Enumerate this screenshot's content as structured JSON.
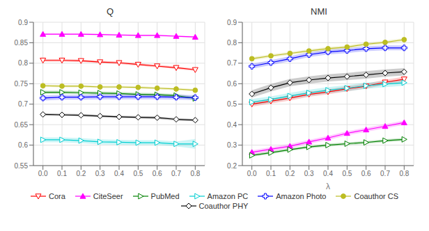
{
  "chart_data": [
    {
      "type": "line",
      "title": "Q",
      "legend": "bottom",
      "grid": true,
      "x": [
        0.0,
        0.1,
        0.2,
        0.3,
        0.4,
        0.5,
        0.6,
        0.7,
        0.8
      ],
      "xlim": [
        -0.05,
        0.85
      ],
      "xticks": [
        {
          "value": 0.0,
          "label": "0.0"
        },
        0.1,
        0.2,
        0.3,
        0.4,
        0.5,
        0.6,
        0.7,
        0.8
      ],
      "ylim": [
        0.55,
        0.9
      ],
      "yticks": [
        0.55,
        0.6,
        0.65,
        0.7,
        0.75,
        0.8,
        0.85,
        0.9
      ],
      "series": [
        {
          "name": "Cora",
          "color": "#ff0000",
          "marker": "triangle_down_open",
          "values": [
            0.807,
            0.807,
            0.806,
            0.803,
            0.801,
            0.797,
            0.793,
            0.789,
            0.784
          ],
          "std": [
            0.003,
            0.003,
            0.003,
            0.003,
            0.003,
            0.003,
            0.003,
            0.003,
            0.003
          ]
        },
        {
          "name": "CiteSeer",
          "color": "#ff00ff",
          "marker": "triangle_up_filled",
          "values": [
            0.871,
            0.871,
            0.871,
            0.87,
            0.869,
            0.868,
            0.868,
            0.866,
            0.864
          ],
          "std": [
            0.002,
            0.002,
            0.002,
            0.002,
            0.002,
            0.002,
            0.002,
            0.002,
            0.002
          ]
        },
        {
          "name": "PubMed",
          "color": "#008000",
          "marker": "triangle_right_open",
          "values": [
            0.729,
            0.729,
            0.728,
            0.727,
            0.726,
            0.724,
            0.723,
            0.721,
            0.714
          ],
          "std": [
            0.004,
            0.004,
            0.004,
            0.004,
            0.004,
            0.004,
            0.004,
            0.004,
            0.004
          ]
        },
        {
          "name": "Amazon PC",
          "color": "#00ced1",
          "marker": "triangle_right_open",
          "values": [
            0.613,
            0.613,
            0.611,
            0.608,
            0.607,
            0.606,
            0.606,
            0.603,
            0.603
          ],
          "std": [
            0.006,
            0.006,
            0.006,
            0.006,
            0.006,
            0.006,
            0.006,
            0.006,
            0.012
          ]
        },
        {
          "name": "Amazon Photo",
          "color": "#0000ff",
          "marker": "plus_open",
          "values": [
            0.715,
            0.717,
            0.717,
            0.718,
            0.718,
            0.718,
            0.718,
            0.717,
            0.716
          ],
          "std": [
            0.006,
            0.006,
            0.006,
            0.006,
            0.006,
            0.006,
            0.006,
            0.006,
            0.006
          ]
        },
        {
          "name": "Coauthor CS",
          "color": "#bcbd22",
          "marker": "circle_filled",
          "values": [
            0.745,
            0.744,
            0.744,
            0.742,
            0.742,
            0.741,
            0.739,
            0.737,
            0.734
          ],
          "std": [
            0.003,
            0.003,
            0.003,
            0.003,
            0.003,
            0.003,
            0.003,
            0.003,
            0.003
          ]
        },
        {
          "name": "Coauthor PHY",
          "color": "#000000",
          "marker": "diamond_open",
          "values": [
            0.675,
            0.674,
            0.673,
            0.671,
            0.669,
            0.668,
            0.667,
            0.663,
            0.661
          ],
          "std": [
            0.003,
            0.003,
            0.003,
            0.003,
            0.003,
            0.003,
            0.003,
            0.003,
            0.003
          ]
        }
      ]
    },
    {
      "type": "line",
      "title": "NMI",
      "x_label": "λ",
      "legend": "bottom",
      "grid": true,
      "x": [
        0.0,
        0.1,
        0.2,
        0.3,
        0.4,
        0.5,
        0.6,
        0.7,
        0.8
      ],
      "xlim": [
        -0.05,
        0.85
      ],
      "xticks": [
        {
          "value": 0.0,
          "label": "0.0"
        },
        0.1,
        0.2,
        0.3,
        0.4,
        0.5,
        0.6,
        0.7,
        0.8
      ],
      "ylim": [
        0.2,
        0.9
      ],
      "yticks": [
        0.2,
        0.3,
        0.4,
        0.5,
        0.6,
        0.7,
        0.8,
        0.9
      ],
      "series": [
        {
          "name": "Cora",
          "color": "#ff0000",
          "marker": "triangle_down_open",
          "values": [
            0.5,
            0.515,
            0.53,
            0.548,
            0.56,
            0.575,
            0.588,
            0.607,
            0.622
          ],
          "std": [
            0.012,
            0.012,
            0.012,
            0.012,
            0.012,
            0.012,
            0.012,
            0.012,
            0.012
          ]
        },
        {
          "name": "CiteSeer",
          "color": "#ff00ff",
          "marker": "triangle_up_filled",
          "values": [
            0.265,
            0.28,
            0.295,
            0.316,
            0.335,
            0.358,
            0.375,
            0.392,
            0.41
          ],
          "std": [
            0.01,
            0.01,
            0.01,
            0.01,
            0.01,
            0.01,
            0.01,
            0.01,
            0.01
          ]
        },
        {
          "name": "PubMed",
          "color": "#008000",
          "marker": "triangle_right_open",
          "values": [
            0.25,
            0.263,
            0.278,
            0.291,
            0.3,
            0.307,
            0.313,
            0.322,
            0.328
          ],
          "std": [
            0.007,
            0.007,
            0.007,
            0.007,
            0.007,
            0.007,
            0.007,
            0.007,
            0.007
          ]
        },
        {
          "name": "Amazon PC",
          "color": "#00ced1",
          "marker": "triangle_right_open",
          "values": [
            0.51,
            0.523,
            0.54,
            0.555,
            0.568,
            0.578,
            0.59,
            0.598,
            0.605
          ],
          "std": [
            0.015,
            0.015,
            0.015,
            0.015,
            0.015,
            0.015,
            0.015,
            0.015,
            0.015
          ]
        },
        {
          "name": "Amazon Photo",
          "color": "#0000ff",
          "marker": "plus_open",
          "values": [
            0.685,
            0.703,
            0.722,
            0.742,
            0.755,
            0.762,
            0.771,
            0.775,
            0.775
          ],
          "std": [
            0.012,
            0.012,
            0.012,
            0.012,
            0.012,
            0.012,
            0.012,
            0.012,
            0.012
          ]
        },
        {
          "name": "Coauthor CS",
          "color": "#bcbd22",
          "marker": "circle_filled",
          "values": [
            0.722,
            0.736,
            0.748,
            0.76,
            0.771,
            0.779,
            0.793,
            0.802,
            0.815
          ],
          "std": [
            0.008,
            0.008,
            0.008,
            0.008,
            0.008,
            0.008,
            0.008,
            0.008,
            0.008
          ]
        },
        {
          "name": "Coauthor PHY",
          "color": "#000000",
          "marker": "diamond_open",
          "values": [
            0.55,
            0.58,
            0.605,
            0.618,
            0.628,
            0.635,
            0.643,
            0.652,
            0.658
          ],
          "std": [
            0.018,
            0.018,
            0.018,
            0.018,
            0.018,
            0.018,
            0.018,
            0.018,
            0.018
          ]
        }
      ]
    }
  ]
}
